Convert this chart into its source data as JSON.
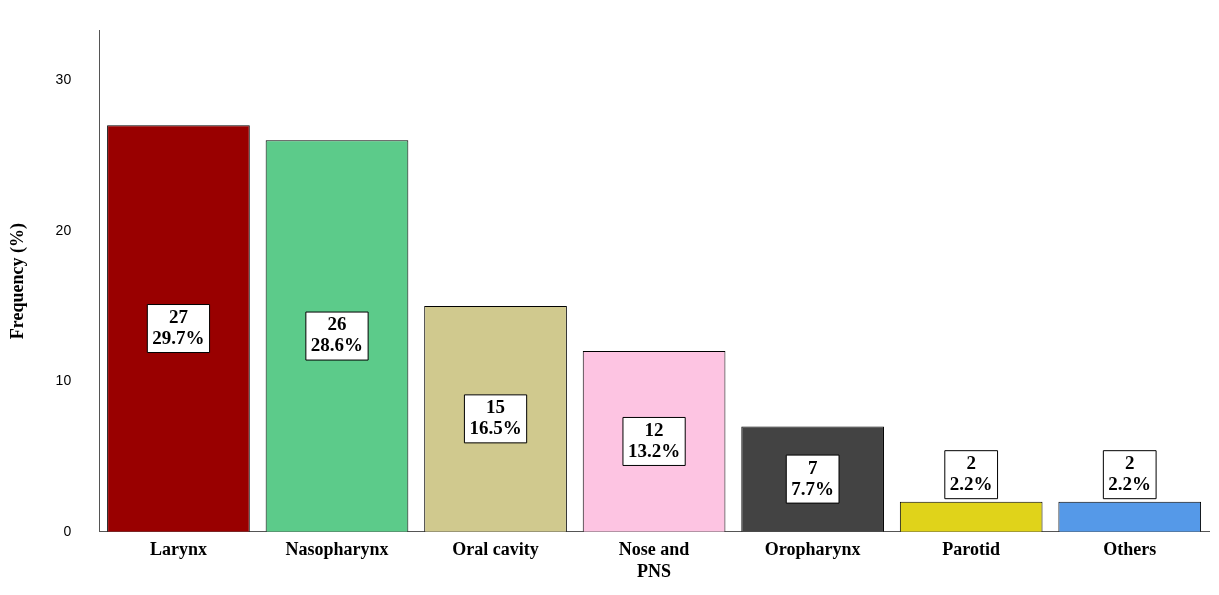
{
  "chart_data": {
    "type": "bar",
    "ylabel": "Frequency (%)",
    "categories": [
      "Larynx",
      "Nasopharynx",
      "Oral cavity",
      "Nose and PNS",
      "Oropharynx",
      "Parotid",
      "Others"
    ],
    "values": [
      27,
      26,
      15,
      12,
      7,
      2,
      2
    ],
    "colors": [
      "#990000",
      "#5ccb8a",
      "#d0c98e",
      "#fdc4e2",
      "#434343",
      "#e0d31a",
      "#5599e8"
    ],
    "value_labels": [
      "27\n29.7%",
      "26\n28.6%",
      "15\n16.5%",
      "12\n13.2%",
      "7\n7.7%",
      "2\n2.2%",
      "2\n2.2%"
    ],
    "ylim": [
      0,
      33.3
    ],
    "yticks": [
      0,
      10,
      20,
      30
    ],
    "grid": false,
    "legend": false
  }
}
